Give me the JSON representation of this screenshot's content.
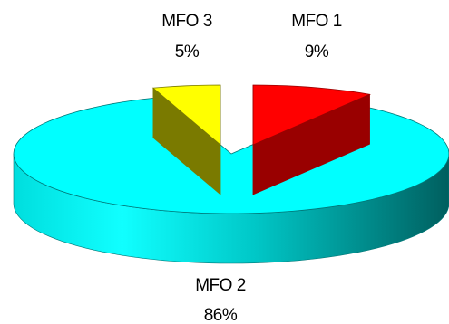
{
  "chart_data": {
    "type": "pie",
    "style": "3d-exploded",
    "slices": [
      {
        "name": "MFO 1",
        "value": 9,
        "value_label": "9%",
        "color": "#ff0000",
        "side_color": "#990000"
      },
      {
        "name": "MFO 2",
        "value": 86,
        "value_label": "86%",
        "color": "#00ffff",
        "side_color": "#007878"
      },
      {
        "name": "MFO 3",
        "value": 5,
        "value_label": "5%",
        "color": "#ffff00",
        "side_color": "#7a7a00"
      }
    ],
    "legend": "none",
    "labels_placement": "outside"
  }
}
